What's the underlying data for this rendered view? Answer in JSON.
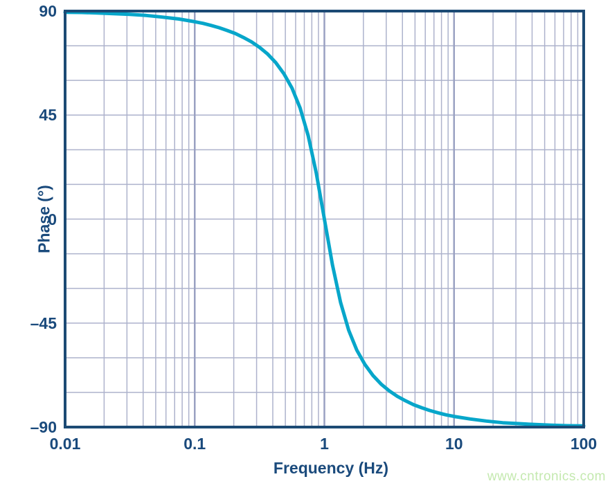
{
  "page": {
    "watermark_text": "www.cntronics.com",
    "watermark_color": "#c4e9af"
  },
  "chart_data": {
    "type": "line",
    "title": "",
    "xlabel": "Frequency (Hz)",
    "ylabel": "Phase (°)",
    "x_scale": "log",
    "x_domain": [
      0.01,
      100
    ],
    "y_domain": [
      -90,
      90
    ],
    "x_tick_values": [
      0.01,
      0.1,
      1,
      10,
      100
    ],
    "x_tick_labels": [
      "0.01",
      "0.1",
      "1",
      "10",
      "100"
    ],
    "y_tick_values": [
      90,
      45,
      0,
      -45,
      -90
    ],
    "y_tick_labels": [
      "90",
      "45",
      "0",
      "–45",
      "–90"
    ],
    "y_grid_step_deg": 15,
    "x_grid_minor": "log decades (2-9 per decade)",
    "grid": true,
    "legend_position": "none",
    "colors": {
      "curve": "#07a6ca",
      "axis_border": "#1c4a74",
      "label_text": "#1a4a7c",
      "grid_minor": "#adb2cc",
      "grid_major": "#9aa1c2"
    },
    "series": [
      {
        "name": "phase",
        "description": "Phase response crossing 0° at 1 Hz, +90° at low frequency, −90° at high frequency",
        "points": [
          [
            0.01,
            89.5
          ],
          [
            0.01334,
            89.4
          ],
          [
            0.01778,
            89.2
          ],
          [
            0.02371,
            88.9
          ],
          [
            0.03162,
            88.6
          ],
          [
            0.04217,
            88.1
          ],
          [
            0.05623,
            87.4
          ],
          [
            0.075,
            86.6
          ],
          [
            0.1,
            85.4
          ],
          [
            0.1155,
            84.7
          ],
          [
            0.1334,
            83.8
          ],
          [
            0.154,
            82.8
          ],
          [
            0.1778,
            81.6
          ],
          [
            0.2054,
            80.3
          ],
          [
            0.2371,
            78.6
          ],
          [
            0.2738,
            76.7
          ],
          [
            0.3162,
            74.3
          ],
          [
            0.3652,
            71.4
          ],
          [
            0.4217,
            67.7
          ],
          [
            0.487,
            62.9
          ],
          [
            0.5623,
            56.7
          ],
          [
            0.6494,
            48.1
          ],
          [
            0.7499,
            36.1
          ],
          [
            0.866,
            19.9
          ],
          [
            1,
            0
          ],
          [
            1.155,
            -19.9
          ],
          [
            1.334,
            -36.1
          ],
          [
            1.54,
            -48.1
          ],
          [
            1.778,
            -56.7
          ],
          [
            2.054,
            -62.9
          ],
          [
            2.371,
            -67.7
          ],
          [
            2.738,
            -71.4
          ],
          [
            3.162,
            -74.3
          ],
          [
            3.652,
            -76.7
          ],
          [
            4.217,
            -78.6
          ],
          [
            4.87,
            -80.3
          ],
          [
            5.623,
            -81.6
          ],
          [
            6.494,
            -82.8
          ],
          [
            7.499,
            -83.8
          ],
          [
            8.66,
            -84.7
          ],
          [
            10,
            -85.4
          ],
          [
            13.34,
            -86.5
          ],
          [
            17.78,
            -87.4
          ],
          [
            23.71,
            -88.1
          ],
          [
            31.62,
            -88.5
          ],
          [
            42.17,
            -88.9
          ],
          [
            56.23,
            -89.2
          ],
          [
            74.99,
            -89.4
          ],
          [
            100,
            -89.5
          ]
        ]
      }
    ]
  }
}
